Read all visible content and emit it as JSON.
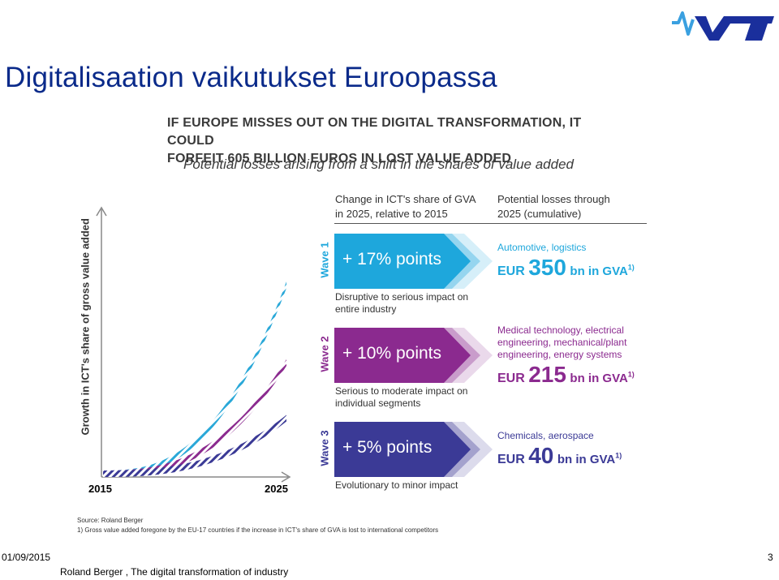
{
  "slide": {
    "title": "Digitalisaation vaikutukset Euroopassa",
    "date": "01/09/2015",
    "page_number": "3",
    "footer": "Roland Berger , The digital transformation of industry",
    "logo_text": "VTT"
  },
  "infographic": {
    "headline_line1": "IF EUROPE MISSES OUT ON THE DIGITAL TRANSFORMATION, IT COULD",
    "headline_line2": "FORFEIT 605 BILLION EUROS IN LOST VALUE ADDED",
    "subheadline": "Potential losses arising from a shift in the shares of value added",
    "col1_header_line1": "Change in ICT's share of GVA",
    "col1_header_line2": "in 2025, relative to 2015",
    "col2_header_line1": "Potential losses through",
    "col2_header_line2": "2025 (cumulative)",
    "waves": [
      {
        "label": "Wave 1",
        "change": "+ 17% points",
        "desc_line1": "Disruptive to serious impact on",
        "desc_line2": "entire industry",
        "sector_line1": "Automotive, logistics",
        "sector_line2": "",
        "sector_line3": "",
        "eur_prefix": "EUR",
        "eur_amount": "350",
        "eur_suffix": "bn in GVA",
        "footnote_mark": "1)",
        "color": "#1ea7dc"
      },
      {
        "label": "Wave 2",
        "change": "+ 10% points",
        "desc_line1": "Serious to moderate impact on",
        "desc_line2": "individual segments",
        "sector_line1": "Medical technology, electrical",
        "sector_line2": "engineering, mechanical/plant",
        "sector_line3": "engineering, energy systems",
        "eur_prefix": "EUR",
        "eur_amount": "215",
        "eur_suffix": "bn in GVA",
        "footnote_mark": "1)",
        "color": "#8b2a8f"
      },
      {
        "label": "Wave 3",
        "change": "+ 5% points",
        "desc_line1": "Evolutionary to minor impact",
        "desc_line2": "",
        "sector_line1": "Chemicals, aerospace",
        "sector_line2": "",
        "sector_line3": "",
        "eur_prefix": "EUR",
        "eur_amount": "40",
        "eur_suffix": "bn in GVA",
        "footnote_mark": "1)",
        "color": "#3b3a96"
      }
    ],
    "source_line1": "Source: Roland Berger",
    "source_line2": "1) Gross value added foregone by the EU-17 countries if the increase in ICT's share of GVA is lost to international competitors"
  },
  "chart_data": {
    "type": "line",
    "ylabel": "Growth in ICT's share of gross value added",
    "x_start_label": "2015",
    "x_end_label": "2025",
    "series": [
      {
        "color": "#2aa8d8",
        "relative_end": 17
      },
      {
        "color": "#8b2a8f",
        "relative_end": 10
      },
      {
        "color": "#3b3a96",
        "relative_end": 5
      }
    ],
    "ylim": [
      0,
      20
    ]
  }
}
